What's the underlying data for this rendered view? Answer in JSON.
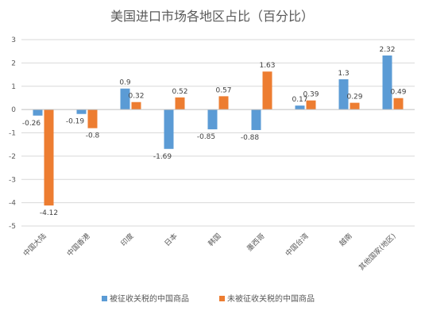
{
  "chart_data": {
    "type": "bar",
    "title": "美国进口市场各地区占比（百分比）",
    "categories": [
      "中国大陆",
      "中国香港",
      "印度",
      "日本",
      "韩国",
      "墨西哥",
      "中国台湾",
      "越南",
      "其他国家(地区)"
    ],
    "series": [
      {
        "name": "被征收关税的中国商品",
        "values": [
          -0.26,
          -0.19,
          0.9,
          -1.69,
          -0.85,
          -0.88,
          0.17,
          1.3,
          2.32
        ],
        "labels": [
          "-0.26",
          "-0.19",
          "0.9",
          "-1.69",
          "-0.85",
          "-0.88",
          "0.17",
          "1.3",
          "2.32"
        ],
        "color": "#5B9BD5"
      },
      {
        "name": "未被征收关税的中国商品",
        "values": [
          -4.12,
          -0.8,
          0.32,
          0.52,
          0.57,
          1.63,
          0.39,
          0.29,
          0.49
        ],
        "labels": [
          "-4.12",
          "-0.8",
          "0.32",
          "0.52",
          "0.57",
          "1.63",
          "0.39",
          "0.29",
          "0.49"
        ],
        "color": "#ED7D31"
      }
    ],
    "ylim": [
      -5,
      3
    ],
    "yticks": [
      "-5",
      "-4",
      "-3",
      "-2",
      "-1",
      "0",
      "1",
      "2",
      "3"
    ],
    "grid": true,
    "legend_position": "bottom",
    "xlabel": "",
    "ylabel": ""
  }
}
